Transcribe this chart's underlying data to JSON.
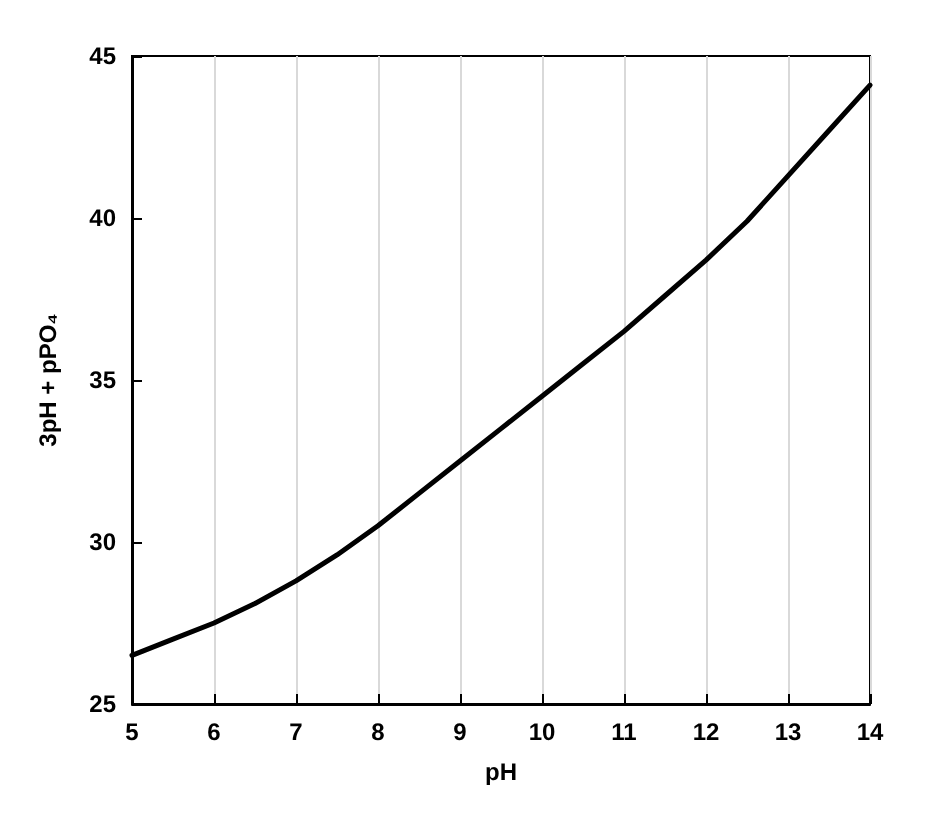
{
  "chart_data": {
    "type": "line",
    "xlabel": "pH",
    "ylabel": "3pH + pPO₄",
    "x": [
      5,
      5.5,
      6,
      6.5,
      7,
      7.5,
      8,
      8.5,
      9,
      9.5,
      10,
      10.5,
      11,
      11.5,
      12,
      12.5,
      13,
      13.5,
      14
    ],
    "series": [
      {
        "color": "#000000",
        "values": [
          26.5,
          27,
          27.5,
          28.1,
          28.8,
          29.6,
          30.5,
          31.5,
          32.5,
          33.5,
          34.5,
          35.5,
          36.5,
          37.6,
          38.7,
          39.9,
          41.3,
          42.7,
          44.1
        ]
      }
    ],
    "xlim": [
      5,
      14
    ],
    "xticks": [
      5,
      6,
      7,
      8,
      9,
      10,
      11,
      12,
      13,
      14
    ],
    "ylim": [
      25,
      45
    ],
    "yticks": [
      25,
      30,
      35,
      40,
      45
    ],
    "grid": "x",
    "marker": "none",
    "line_style": "solid"
  }
}
